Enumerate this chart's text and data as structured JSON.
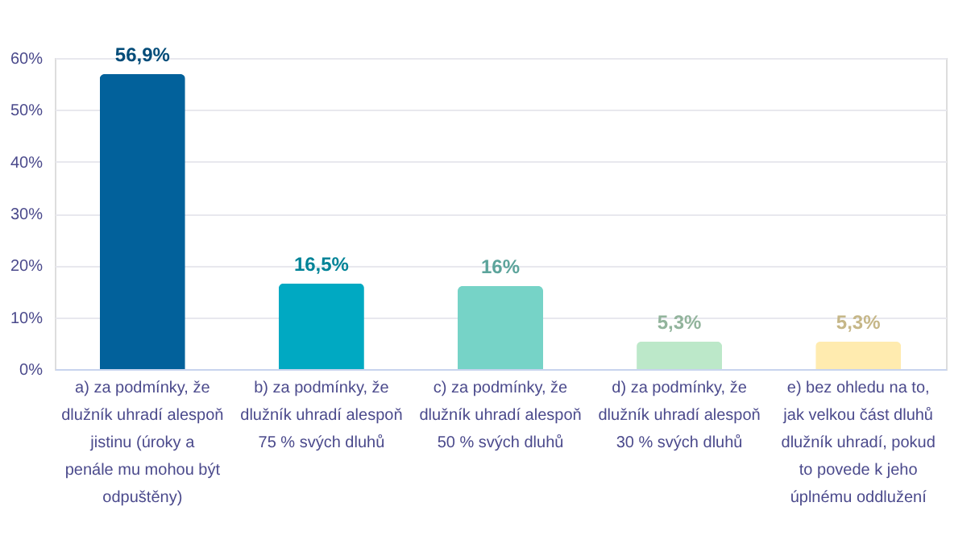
{
  "chart_data": {
    "type": "bar",
    "categories": [
      "a) za podmínky, že dlužník uhradí alespoň jistinu (úroky a penále mu mohou být odpuštěny)",
      "b) za podmínky, že dlužník uhradí alespoň 75 % svých dluhů",
      "c) za podmínky, že dlužník uhradí alespoň 50 % svých dluhů",
      "d) za podmínky, že dlužník uhradí alespoň 30 % svých dluhů",
      "e) bez ohledu na to, jak velkou část dluhů dlužník uhradí, pokud to povede k jeho úplnému oddlužení"
    ],
    "values": [
      56.9,
      16.5,
      16,
      5.3,
      5.3
    ],
    "colors": [
      "#02619b",
      "#00a9c2",
      "#76d3c7",
      "#bce8c9",
      "#ffebaf"
    ],
    "value_labels": [
      "56,9%",
      "16,5%",
      "16%",
      "5,3%",
      "5,3%"
    ],
    "ylim": [
      0,
      60
    ],
    "yticks": [
      {
        "value": 0,
        "label": "0%"
      },
      {
        "value": 10,
        "label": "10%"
      },
      {
        "value": 20,
        "label": "20%"
      },
      {
        "value": 30,
        "label": "30%"
      },
      {
        "value": 40,
        "label": "40%"
      },
      {
        "value": 50,
        "label": "50%"
      },
      {
        "value": 60,
        "label": "60%"
      }
    ],
    "grid": "y"
  }
}
